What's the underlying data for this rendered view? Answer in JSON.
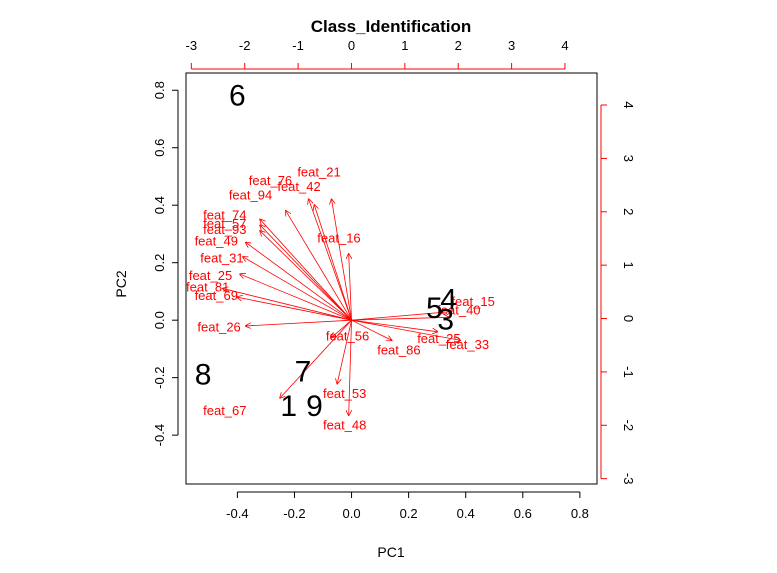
{
  "chart_data": {
    "type": "scatter",
    "subtype": "biplot",
    "title": "Class_Identification",
    "xlabel": "PC1",
    "ylabel": "PC2",
    "xlim": [
      -0.58,
      0.86
    ],
    "ylim": [
      -0.57,
      0.86
    ],
    "x_ticks": [
      -0.4,
      -0.2,
      0.0,
      0.2,
      0.4,
      0.6,
      0.8
    ],
    "y_ticks": [
      -0.4,
      -0.2,
      0.0,
      0.2,
      0.4,
      0.6,
      0.8
    ],
    "x_tick_labels": [
      "-0.4",
      "-0.2",
      "0.0",
      "0.2",
      "0.4",
      "0.6",
      "0.8"
    ],
    "y_tick_labels": [
      "-0.4",
      "-0.2",
      "0.0",
      "0.2",
      "0.4",
      "0.6",
      "0.8"
    ],
    "top_xlim": [
      -3.1,
      4.6
    ],
    "top_ticks": [
      -3,
      -2,
      -1,
      0,
      1,
      2,
      3,
      4
    ],
    "top_tick_labels": [
      "-3",
      "-2",
      "-1",
      "0",
      "1",
      "2",
      "3",
      "4"
    ],
    "right_ylim": [
      -3.1,
      4.6
    ],
    "right_ticks": [
      -3,
      -2,
      -1,
      0,
      1,
      2,
      3,
      4
    ],
    "right_tick_labels": [
      "-3",
      "-2",
      "-1",
      "0",
      "1",
      "2",
      "3",
      "4"
    ],
    "grid": false,
    "observations": [
      {
        "label": "6",
        "x": -0.4,
        "y": 0.78
      },
      {
        "label": "5",
        "x": 0.29,
        "y": 0.04
      },
      {
        "label": "4",
        "x": 0.34,
        "y": 0.07
      },
      {
        "label": "3",
        "x": 0.33,
        "y": 0.0
      },
      {
        "label": "1",
        "x": -0.22,
        "y": -0.3
      },
      {
        "label": "9",
        "x": -0.13,
        "y": -0.3
      },
      {
        "label": "7",
        "x": -0.17,
        "y": -0.18
      },
      {
        "label": "8",
        "x": -0.52,
        "y": -0.19
      }
    ],
    "loadings": [
      {
        "name": "feat_21",
        "x": -0.07,
        "y": 0.42,
        "lx": -0.19,
        "ly": 0.5
      },
      {
        "name": "feat_16",
        "x": -0.01,
        "y": 0.23,
        "lx": -0.12,
        "ly": 0.27
      },
      {
        "name": "feat_42",
        "x": -0.13,
        "y": 0.4,
        "lx": -0.26,
        "ly": 0.45
      },
      {
        "name": "feat_76",
        "x": -0.15,
        "y": 0.42,
        "lx": -0.36,
        "ly": 0.47
      },
      {
        "name": "feat_94",
        "x": -0.23,
        "y": 0.38,
        "lx": -0.43,
        "ly": 0.42
      },
      {
        "name": "feat_74",
        "x": -0.32,
        "y": 0.35,
        "lx": -0.52,
        "ly": 0.35
      },
      {
        "name": "feat_57",
        "x": -0.32,
        "y": 0.33,
        "lx": -0.52,
        "ly": 0.32
      },
      {
        "name": "feat_93",
        "x": -0.32,
        "y": 0.31,
        "lx": -0.52,
        "ly": 0.3
      },
      {
        "name": "feat_49",
        "x": -0.37,
        "y": 0.27,
        "lx": -0.55,
        "ly": 0.26
      },
      {
        "name": "feat_31",
        "x": -0.38,
        "y": 0.22,
        "lx": -0.53,
        "ly": 0.2
      },
      {
        "name": "feat_25",
        "x": -0.39,
        "y": 0.16,
        "lx": -0.57,
        "ly": 0.14
      },
      {
        "name": "feat_81",
        "x": -0.45,
        "y": 0.11,
        "lx": -0.58,
        "ly": 0.1
      },
      {
        "name": "feat_69",
        "x": -0.4,
        "y": 0.08,
        "lx": -0.55,
        "ly": 0.07
      },
      {
        "name": "feat_26",
        "x": -0.37,
        "y": -0.02,
        "lx": -0.54,
        "ly": -0.04
      },
      {
        "name": "feat_56",
        "x": -0.07,
        "y": -0.06,
        "lx": -0.09,
        "ly": -0.07
      },
      {
        "name": "feat_86",
        "x": 0.14,
        "y": -0.07,
        "lx": 0.09,
        "ly": -0.12
      },
      {
        "name": "feat_25",
        "x": 0.3,
        "y": -0.04,
        "lx": 0.23,
        "ly": -0.08
      },
      {
        "name": "feat_33",
        "x": 0.38,
        "y": -0.07,
        "lx": 0.33,
        "ly": -0.1
      },
      {
        "name": "feat_15",
        "x": 0.35,
        "y": 0.03,
        "lx": 0.35,
        "ly": 0.05
      },
      {
        "name": "feat_40",
        "x": 0.34,
        "y": 0.01,
        "lx": 0.3,
        "ly": 0.02
      },
      {
        "name": "feat_48",
        "x": -0.01,
        "y": -0.33,
        "lx": -0.1,
        "ly": -0.38
      },
      {
        "name": "feat_53",
        "x": -0.05,
        "y": -0.22,
        "lx": -0.1,
        "ly": -0.27
      },
      {
        "name": "feat_67",
        "x": -0.25,
        "y": -0.27,
        "lx": -0.52,
        "ly": -0.33
      }
    ]
  }
}
